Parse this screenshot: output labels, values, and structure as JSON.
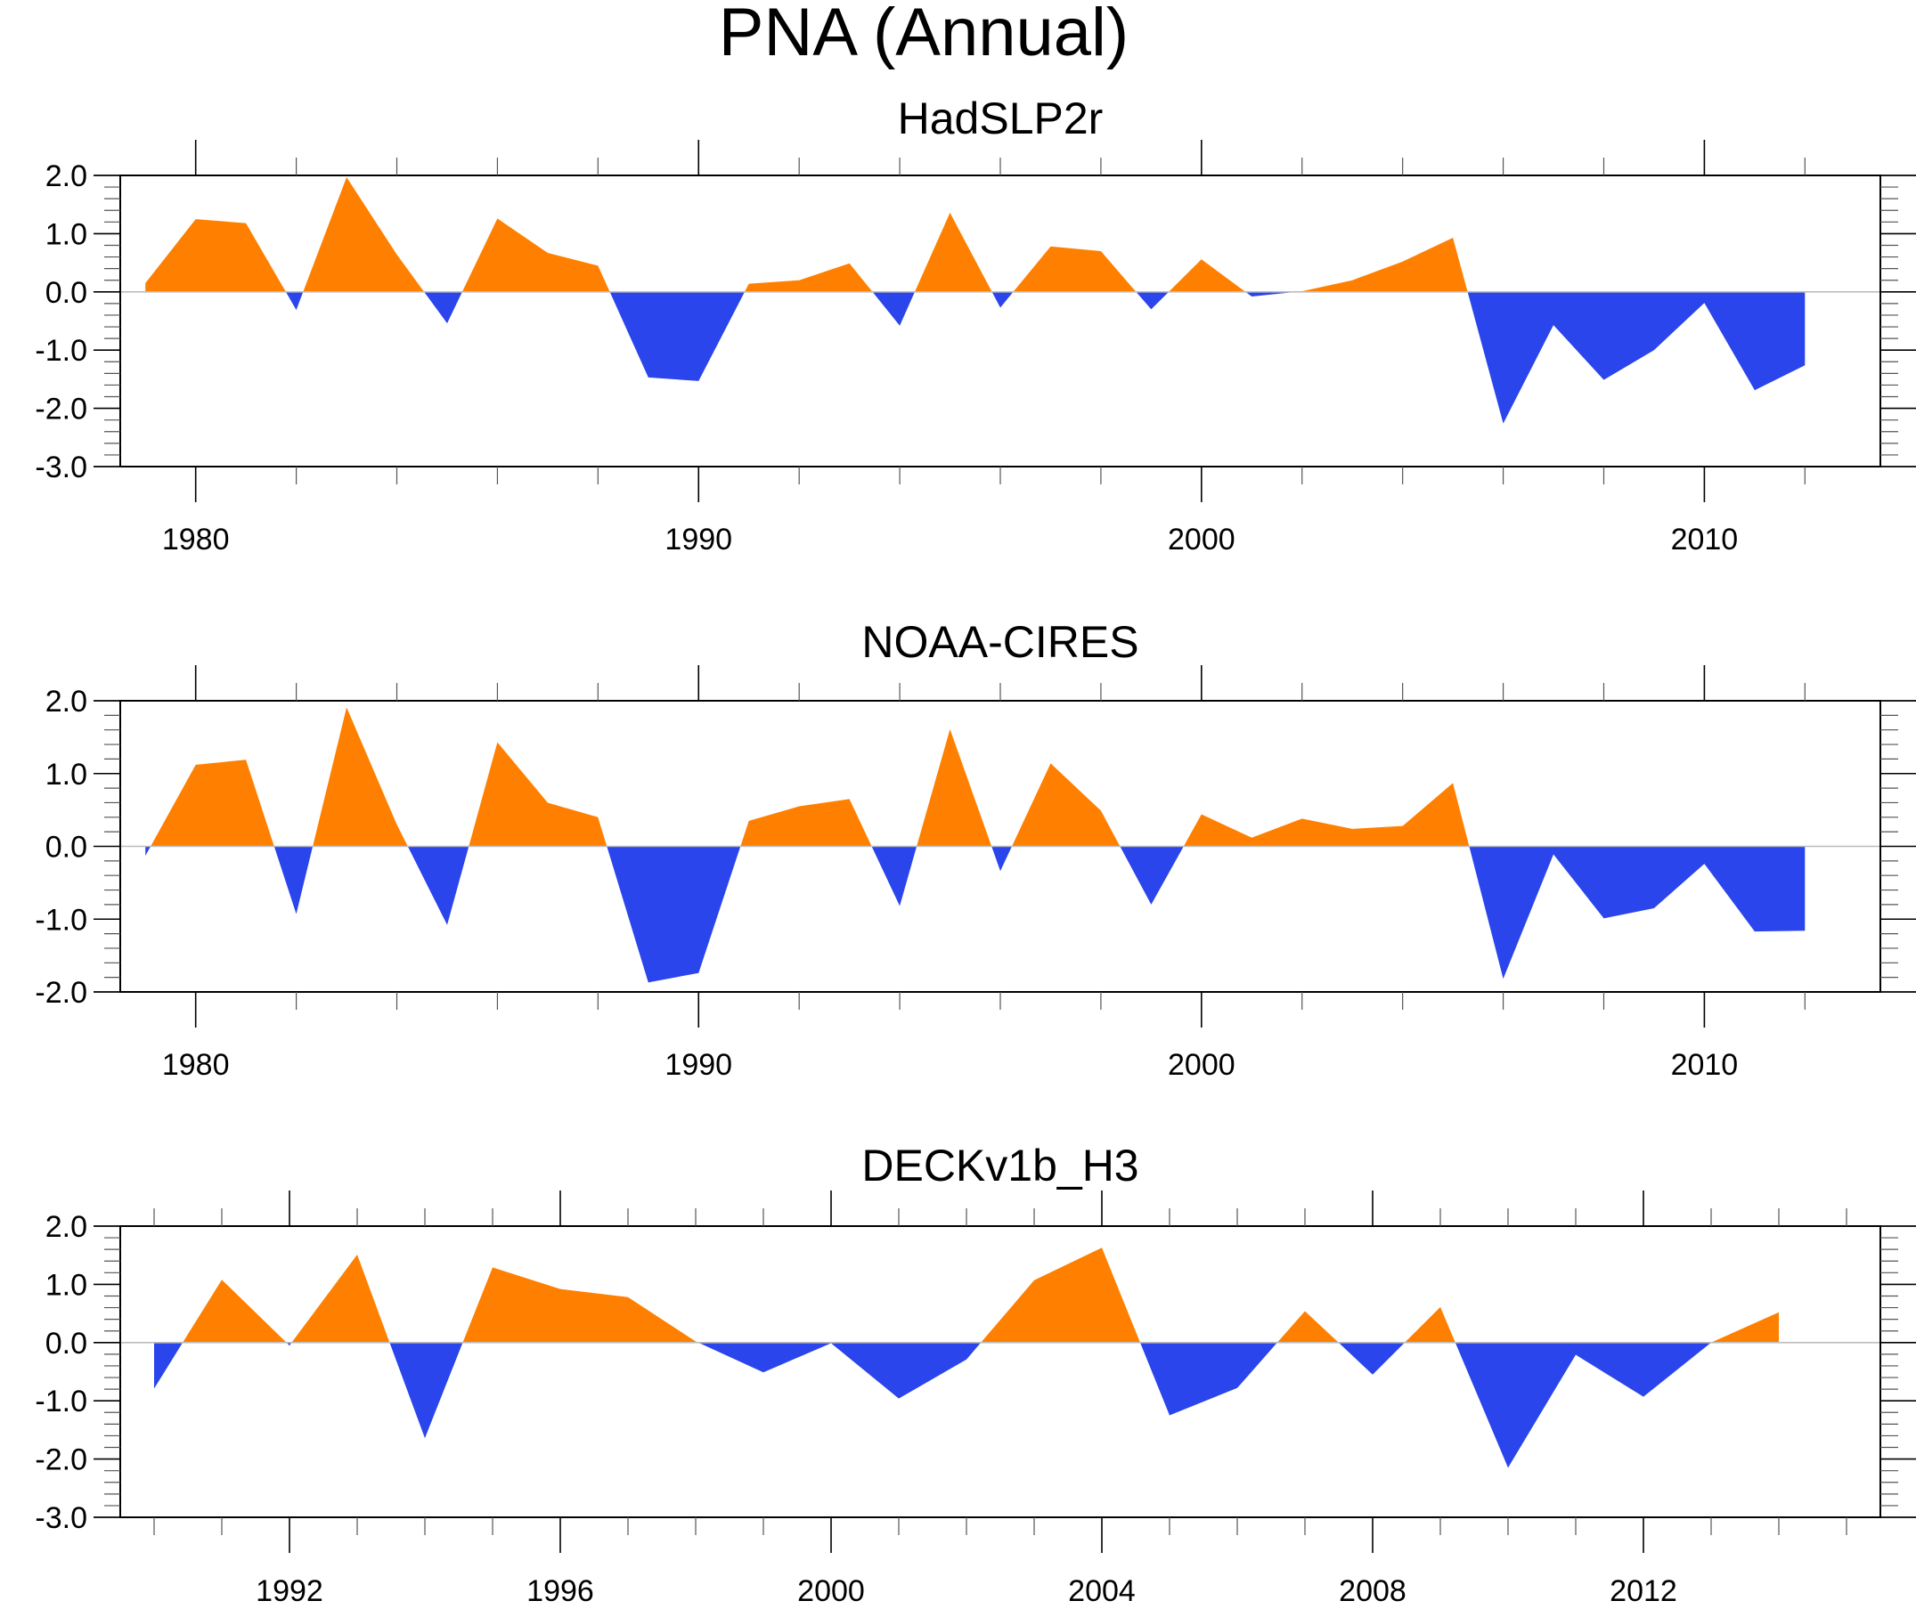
{
  "chart_data": {
    "type": "area",
    "title": "PNA (Annual)",
    "colors": {
      "positive": "#FF8000",
      "negative": "#2A45EC",
      "zero_line": "#BDBDBD"
    },
    "panels": [
      {
        "title": "HadSLP2r",
        "xlabel": "",
        "ylabel": "",
        "xlim": [
          1978.5,
          2013.5
        ],
        "ylim": [
          -3.0,
          2.0
        ],
        "xticks_major": [
          1980,
          1990,
          2000,
          2010
        ],
        "xtick_labels": [
          "1980",
          "1990",
          "2000",
          "2010"
        ],
        "xticks_minor_step": 2,
        "yticks": [
          2.0,
          1.0,
          0.0,
          -1.0,
          -2.0,
          -3.0
        ],
        "ytick_labels": [
          "2.0",
          "1.0",
          "0.0",
          "-1.0",
          "-2.0",
          "-3.0"
        ],
        "x": [
          1979,
          1980,
          1981,
          1982,
          1983,
          1984,
          1985,
          1986,
          1987,
          1988,
          1989,
          1990,
          1991,
          1992,
          1993,
          1994,
          1995,
          1996,
          1997,
          1998,
          1999,
          2000,
          2001,
          2002,
          2003,
          2004,
          2005,
          2006,
          2007,
          2008,
          2009,
          2010,
          2011,
          2012
        ],
        "values": [
          0.15,
          1.25,
          1.18,
          -0.31,
          1.97,
          0.64,
          -0.54,
          1.26,
          0.67,
          0.45,
          -1.47,
          -1.53,
          0.14,
          0.2,
          0.49,
          -0.58,
          1.36,
          -0.27,
          0.78,
          0.7,
          -0.3,
          0.56,
          -0.08,
          0.01,
          0.2,
          0.52,
          0.93,
          -2.26,
          -0.57,
          -1.51,
          -1.0,
          -0.19,
          -1.69,
          -1.26
        ]
      },
      {
        "title": "NOAA-CIRES",
        "xlabel": "",
        "ylabel": "",
        "xlim": [
          1978.5,
          2013.5
        ],
        "ylim": [
          -2.0,
          2.0
        ],
        "xticks_major": [
          1980,
          1990,
          2000,
          2010
        ],
        "xtick_labels": [
          "1980",
          "1990",
          "2000",
          "2010"
        ],
        "xticks_minor_step": 2,
        "yticks": [
          2.0,
          1.0,
          0.0,
          -1.0,
          -2.0
        ],
        "ytick_labels": [
          "2.0",
          "1.0",
          "0.0",
          "-1.0",
          "-2.0"
        ],
        "x": [
          1979,
          1980,
          1981,
          1982,
          1983,
          1984,
          1985,
          1986,
          1987,
          1988,
          1989,
          1990,
          1991,
          1992,
          1993,
          1994,
          1995,
          1996,
          1997,
          1998,
          1999,
          2000,
          2001,
          2002,
          2003,
          2004,
          2005,
          2006,
          2007,
          2008,
          2009,
          2010,
          2011,
          2012
        ],
        "values": [
          -0.13,
          1.12,
          1.19,
          -0.93,
          1.91,
          0.3,
          -1.08,
          1.43,
          0.6,
          0.4,
          -1.87,
          -1.74,
          0.35,
          0.55,
          0.65,
          -0.82,
          1.61,
          -0.34,
          1.14,
          0.49,
          -0.8,
          0.44,
          0.12,
          0.38,
          0.24,
          0.28,
          0.87,
          -1.82,
          -0.11,
          -0.99,
          -0.85,
          -0.24,
          -1.17,
          -1.16
        ]
      },
      {
        "title": "DECKv1b_H3",
        "xlabel": "",
        "ylabel": "",
        "xlim": [
          1989.5,
          2015.5
        ],
        "ylim": [
          -3.0,
          2.0
        ],
        "xticks_major": [
          1992,
          1996,
          2000,
          2004,
          2008,
          2012
        ],
        "xtick_labels": [
          "1992",
          "1996",
          "2000",
          "2004",
          "2008",
          "2012"
        ],
        "xticks_minor_step": 1,
        "yticks": [
          2.0,
          1.0,
          0.0,
          -1.0,
          -2.0,
          -3.0
        ],
        "ytick_labels": [
          "2.0",
          "1.0",
          "0.0",
          "-1.0",
          "-2.0",
          "-3.0"
        ],
        "x": [
          1990,
          1991,
          1992,
          1993,
          1994,
          1995,
          1996,
          1997,
          1998,
          1999,
          2000,
          2001,
          2002,
          2003,
          2004,
          2005,
          2006,
          2007,
          2008,
          2009,
          2010,
          2011,
          2012,
          2013,
          2014
        ],
        "values": [
          -0.79,
          1.08,
          -0.05,
          1.51,
          -1.64,
          1.29,
          0.92,
          0.78,
          0.02,
          -0.51,
          -0.01,
          -0.96,
          -0.29,
          1.07,
          1.63,
          -1.25,
          -0.78,
          0.54,
          -0.55,
          0.61,
          -2.15,
          -0.21,
          -0.93,
          0.0,
          0.52
        ]
      }
    ]
  }
}
